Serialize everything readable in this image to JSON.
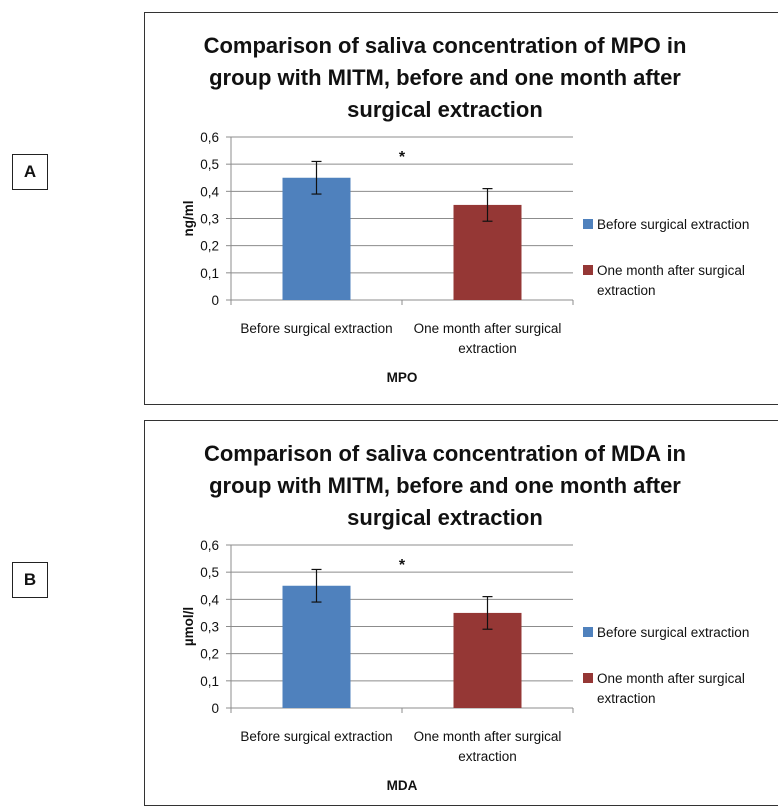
{
  "panels": [
    {
      "label": "A"
    },
    {
      "label": "B"
    }
  ],
  "chart_data": [
    {
      "type": "bar",
      "title_lines": [
        "Comparison of saliva concentration of MPO  in",
        "group with MITM, before and one month after",
        "surgical extraction"
      ],
      "categories": [
        "Before surgical extraction",
        "One month after surgical extraction"
      ],
      "category_lines": [
        [
          "Before surgical extraction"
        ],
        [
          "One month after surgical",
          "extraction"
        ]
      ],
      "values": [
        0.45,
        0.35
      ],
      "errors": [
        0.06,
        0.06
      ],
      "colors": [
        "#4f81bd",
        "#953735"
      ],
      "legend": [
        {
          "lines": [
            "Before surgical extraction"
          ],
          "color": "#4f81bd"
        },
        {
          "lines": [
            "One month after surgical",
            "extraction"
          ],
          "color": "#953735"
        }
      ],
      "legend_position": "right",
      "xlabel": "MPO",
      "ylabel": "ng/ml",
      "yticks": [
        "0",
        "0,1",
        "0,2",
        "0,3",
        "0,4",
        "0,5",
        "0,6"
      ],
      "ylim": [
        0,
        0.6
      ],
      "grid": true,
      "annotation": "*"
    },
    {
      "type": "bar",
      "title_lines": [
        "Comparison of saliva concentration of MDA  in",
        "group with MITM, before and one month after",
        "surgical extraction"
      ],
      "categories": [
        "Before surgical extraction",
        "One month after surgical extraction"
      ],
      "category_lines": [
        [
          "Before surgical extraction"
        ],
        [
          "One month after surgical",
          "extraction"
        ]
      ],
      "values": [
        0.45,
        0.35
      ],
      "errors": [
        0.06,
        0.06
      ],
      "colors": [
        "#4f81bd",
        "#953735"
      ],
      "legend": [
        {
          "lines": [
            "Before surgical extraction"
          ],
          "color": "#4f81bd"
        },
        {
          "lines": [
            "One month after surgical",
            "extraction"
          ],
          "color": "#953735"
        }
      ],
      "legend_position": "right",
      "xlabel": "MDA",
      "ylabel": "µmol/l",
      "yticks": [
        "0",
        "0,1",
        "0,2",
        "0,3",
        "0,4",
        "0,5",
        "0,6"
      ],
      "ylim": [
        0,
        0.6
      ],
      "grid": true,
      "annotation": "*"
    }
  ]
}
